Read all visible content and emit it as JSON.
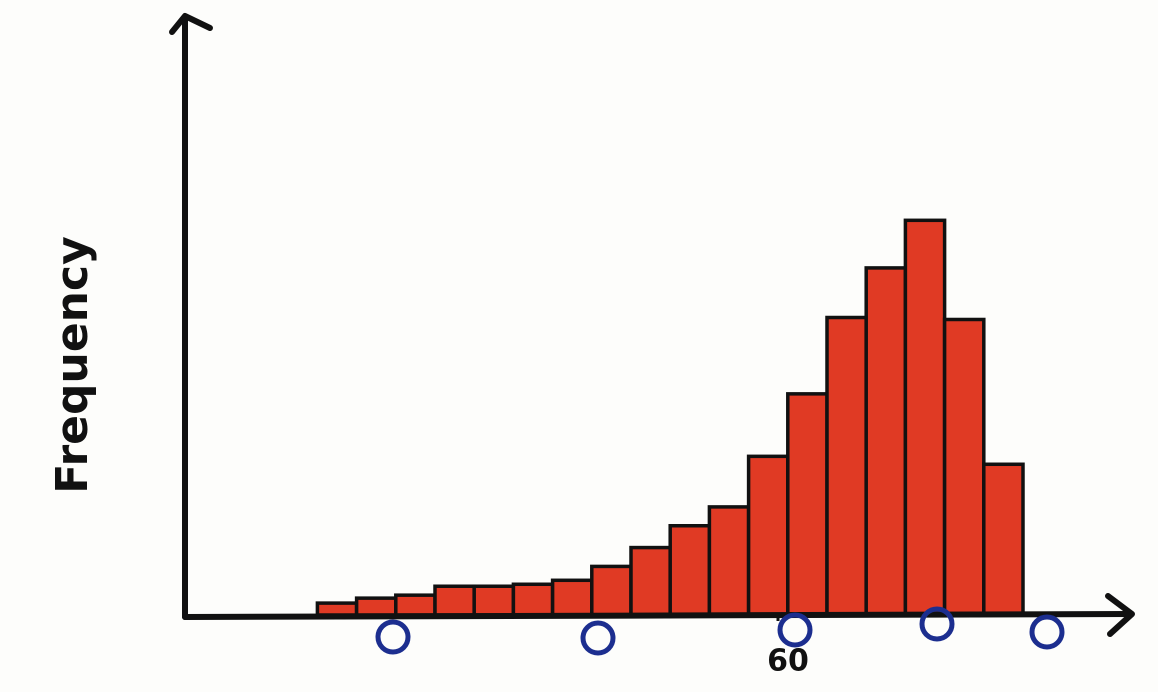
{
  "chart_data": {
    "type": "histogram",
    "ylabel": "Frequency",
    "bins": [
      13,
      17,
      21,
      25,
      29,
      33,
      37,
      41,
      45,
      49,
      53,
      57,
      61,
      65,
      69,
      73,
      77,
      81,
      85
    ],
    "values": [
      1.2,
      1.7,
      2,
      2.9,
      2.9,
      3.1,
      3.5,
      4.9,
      6.8,
      9,
      10.9,
      16,
      22.3,
      30,
      35,
      39.8,
      29.8,
      15.2
    ],
    "color": "#e03a24",
    "xlim": [
      0,
      95
    ],
    "xticks": [
      60
    ],
    "ylim": [
      0,
      60
    ]
  }
}
